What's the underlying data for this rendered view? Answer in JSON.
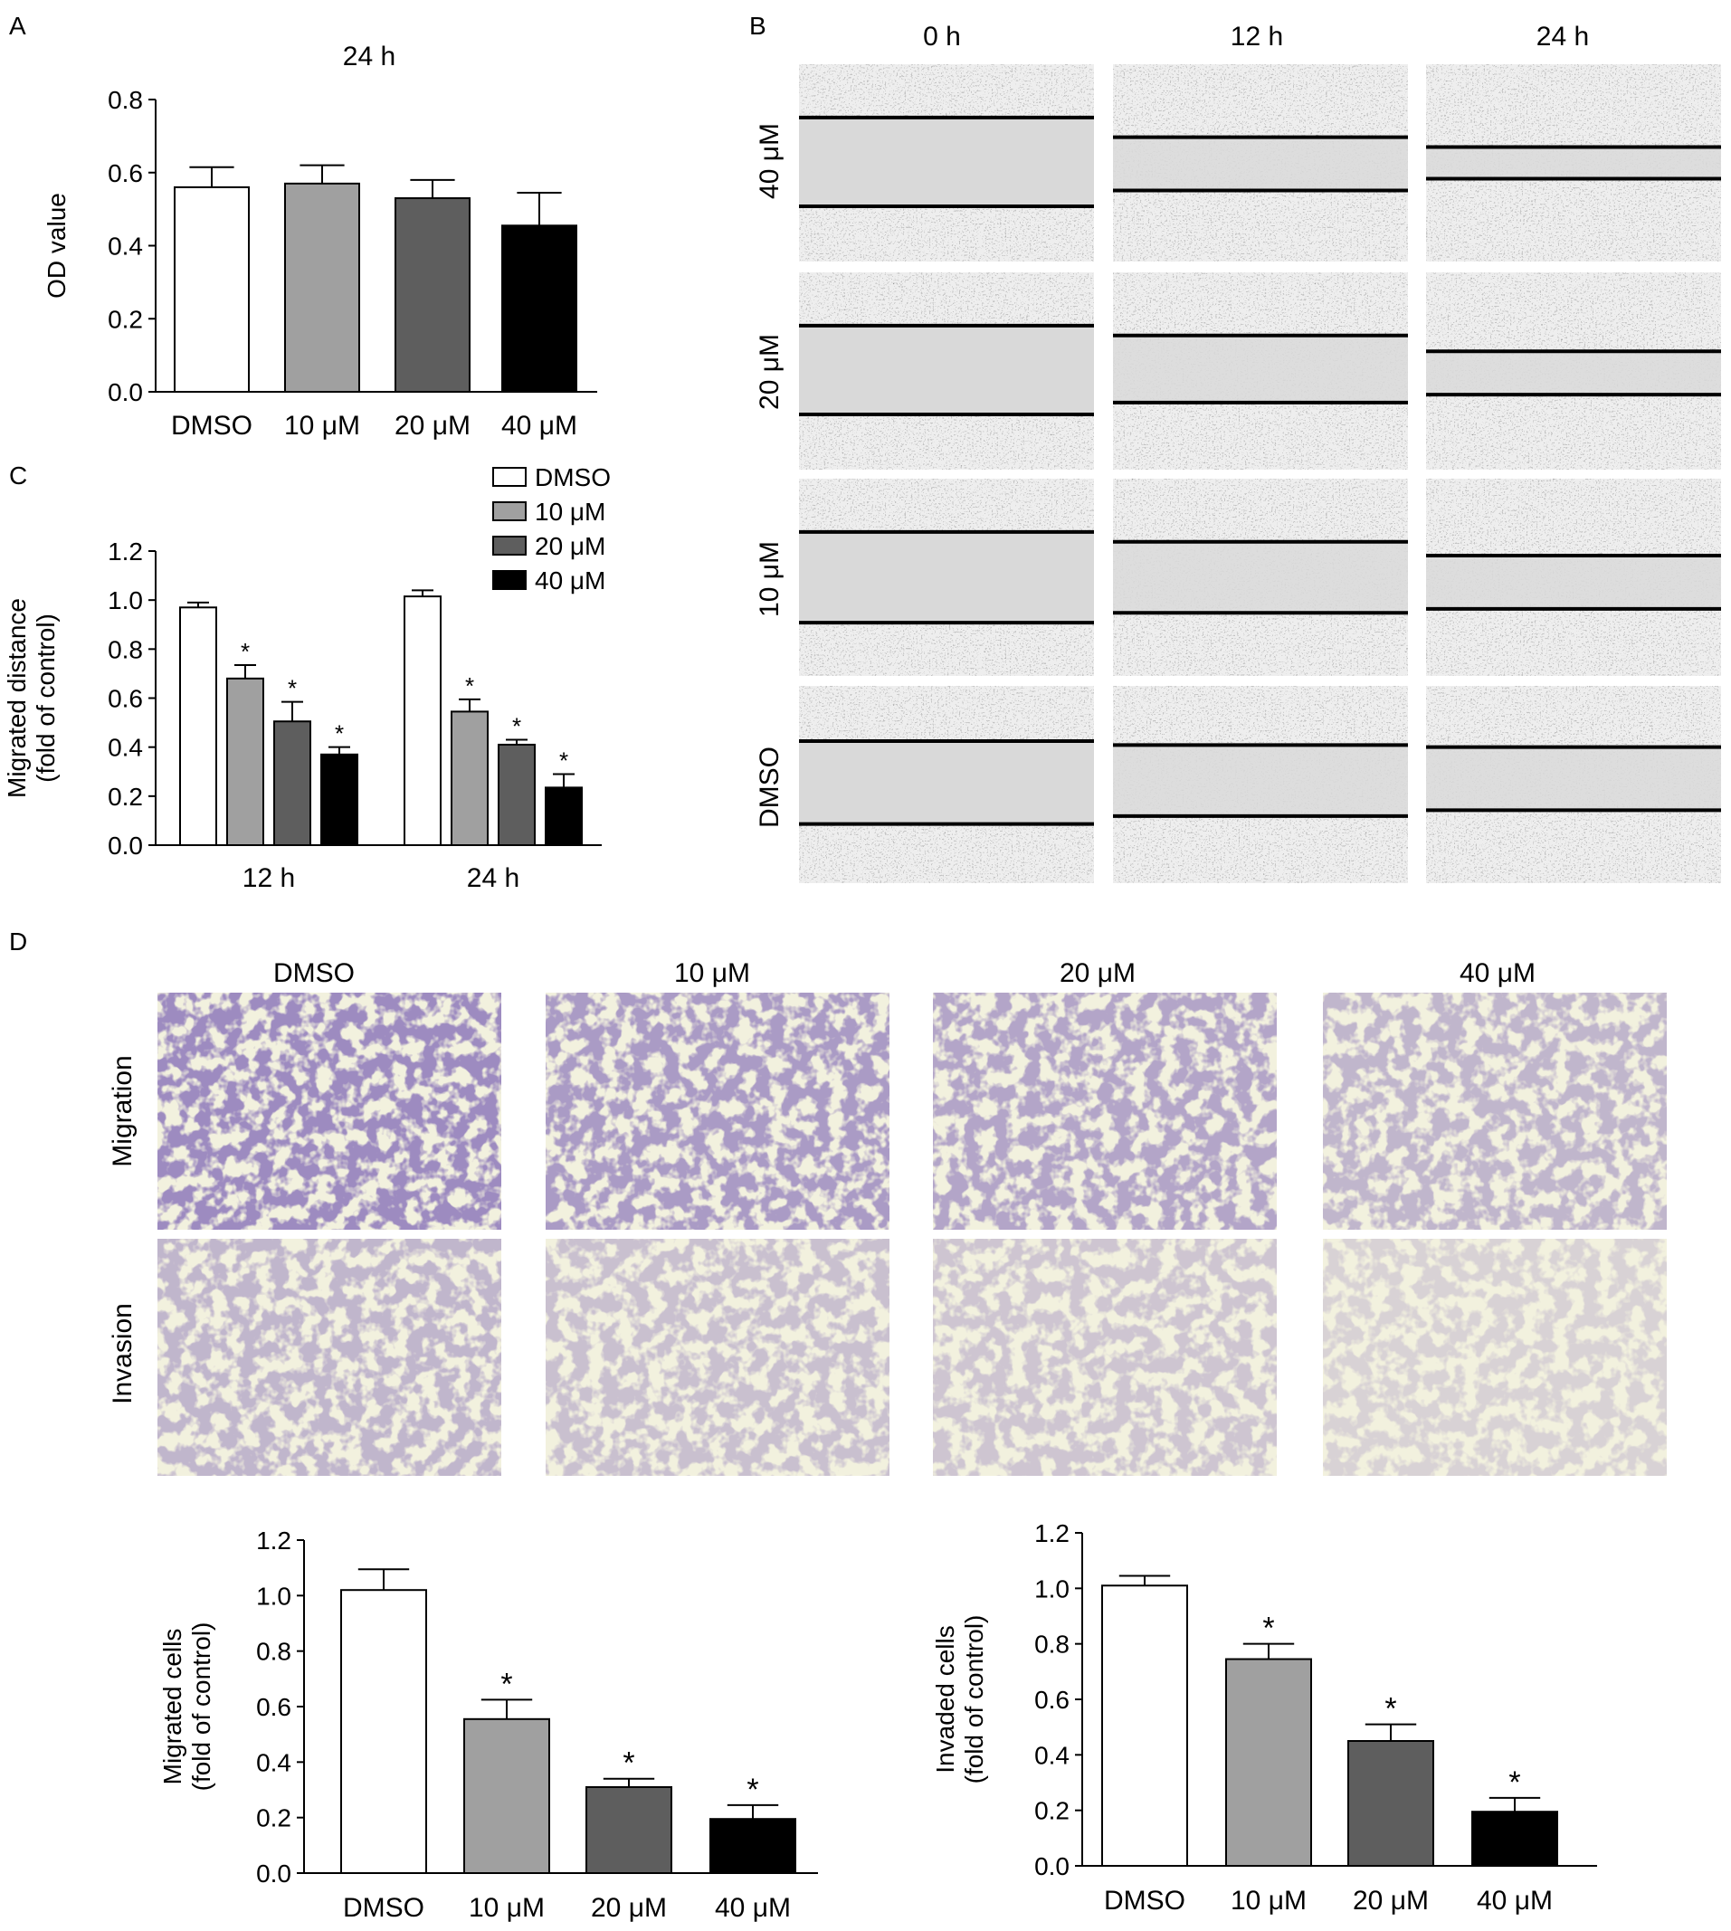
{
  "panels": {
    "A": {
      "letter": "A"
    },
    "B": {
      "letter": "B",
      "columns": [
        "0 h",
        "12 h",
        "24 h"
      ],
      "rows": [
        "40 μM",
        "20 μM",
        "10 μM",
        "DMSO"
      ]
    },
    "C": {
      "letter": "C"
    },
    "D": {
      "letter": "D",
      "columns": [
        "DMSO",
        "10 μM",
        "20 μM",
        "40 μM"
      ],
      "rows": [
        "Migration",
        "Invasion"
      ]
    }
  },
  "colors": {
    "DMSO": "#ffffff",
    "10 μM": "#a0a0a0",
    "20 μM": "#5e5e5e",
    "40 μM": "#000000",
    "stain": "#5a3f8f",
    "stain_bg": "#f2f1de",
    "phase_bg": "#d9d9d9"
  },
  "chart_data": [
    {
      "id": "A",
      "type": "bar",
      "title": "24 h",
      "xlabel": "",
      "ylabel": "OD value",
      "categories": [
        "DMSO",
        "10 μM",
        "20 μM",
        "40 μM"
      ],
      "values": [
        0.56,
        0.57,
        0.53,
        0.455
      ],
      "errors": [
        0.055,
        0.05,
        0.05,
        0.09
      ],
      "ylim": [
        0,
        0.8
      ],
      "yticks": [
        "0.0",
        "0.2",
        "0.4",
        "0.6",
        "0.8"
      ],
      "significant": [
        false,
        false,
        false,
        false
      ]
    },
    {
      "id": "C",
      "type": "bar",
      "xlabel": "",
      "ylabel": [
        "Migrated distance",
        "(fold of control)"
      ],
      "categories": [
        "12 h",
        "24 h"
      ],
      "series": [
        {
          "name": "DMSO",
          "values": [
            0.97,
            1.015
          ],
          "errors": [
            0.02,
            0.025
          ],
          "significant": [
            false,
            false
          ]
        },
        {
          "name": "10 μM",
          "values": [
            0.68,
            0.545
          ],
          "errors": [
            0.055,
            0.05
          ],
          "significant": [
            true,
            true
          ]
        },
        {
          "name": "20 μM",
          "values": [
            0.505,
            0.41
          ],
          "errors": [
            0.08,
            0.02
          ],
          "significant": [
            true,
            true
          ]
        },
        {
          "name": "40 μM",
          "values": [
            0.37,
            0.235
          ],
          "errors": [
            0.03,
            0.055
          ],
          "significant": [
            true,
            true
          ]
        }
      ],
      "ylim": [
        0,
        1.2
      ],
      "yticks": [
        "0.0",
        "0.2",
        "0.4",
        "0.6",
        "0.8",
        "1.0",
        "1.2"
      ],
      "legend": "top-right"
    },
    {
      "id": "D-migration",
      "type": "bar",
      "xlabel": "",
      "ylabel": [
        "Migrated cells",
        "(fold of control)"
      ],
      "categories": [
        "DMSO",
        "10 μM",
        "20 μM",
        "40 μM"
      ],
      "values": [
        1.02,
        0.555,
        0.31,
        0.195
      ],
      "errors": [
        0.075,
        0.07,
        0.03,
        0.05
      ],
      "ylim": [
        0,
        1.2
      ],
      "yticks": [
        "0.0",
        "0.2",
        "0.4",
        "0.6",
        "0.8",
        "1.0",
        "1.2"
      ],
      "significant": [
        false,
        true,
        true,
        true
      ]
    },
    {
      "id": "D-invasion",
      "type": "bar",
      "xlabel": "",
      "ylabel": [
        "Invaded cells",
        "(fold of control)"
      ],
      "categories": [
        "DMSO",
        "10 μM",
        "20 μM",
        "40 μM"
      ],
      "values": [
        1.01,
        0.745,
        0.45,
        0.195
      ],
      "errors": [
        0.035,
        0.055,
        0.06,
        0.05
      ],
      "ylim": [
        0,
        1.2
      ],
      "yticks": [
        "0.0",
        "0.2",
        "0.4",
        "0.6",
        "0.8",
        "1.0",
        "1.2"
      ],
      "significant": [
        false,
        true,
        true,
        true
      ]
    }
  ],
  "significance_marker": "*"
}
